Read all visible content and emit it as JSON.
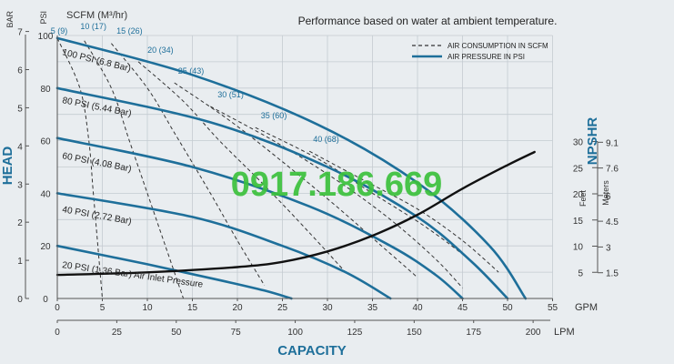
{
  "chart_data": {
    "type": "line",
    "title": "Performance based on water at ambient temperature.",
    "xlabel": "CAPACITY",
    "ylabel": "HEAD",
    "npshr_label": "NPSHR",
    "x_gpm": {
      "unit": "GPM",
      "range": [
        0,
        55
      ],
      "ticks": [
        0,
        5,
        10,
        15,
        20,
        25,
        30,
        35,
        40,
        45,
        50,
        55
      ]
    },
    "x_lpm": {
      "unit": "LPM",
      "range": [
        0,
        208
      ],
      "ticks": [
        0,
        25,
        50,
        75,
        100,
        125,
        150,
        175,
        200
      ]
    },
    "y_psi": {
      "unit": "PSI",
      "range": [
        0,
        100
      ],
      "ticks": [
        0,
        20,
        40,
        60,
        80,
        100
      ]
    },
    "y_bar": {
      "unit": "BAR",
      "ticks": [
        0,
        1,
        2,
        3,
        4,
        5,
        6,
        7
      ]
    },
    "npshr_axis": {
      "feet_label": "Feet",
      "meters_label": "Meters",
      "feet_ticks": [
        5,
        10,
        15,
        20,
        25,
        30
      ],
      "meters_ticks": [
        1.5,
        3,
        4.5,
        6,
        7.6,
        9.1
      ]
    },
    "scfm_label": "SCFM (M³/hr)",
    "legend": {
      "placement": "top-right",
      "items": [
        {
          "label": "AIR CONSUMPTION IN SCFM",
          "style": "dashed",
          "color": "#333333"
        },
        {
          "label": "AIR PRESSURE IN PSI",
          "style": "solid",
          "color": "#1e6f9a"
        }
      ]
    },
    "watermark": "0917.186.669",
    "air_pressure_series": [
      {
        "name": "100 PSI (6.8 Bar)",
        "points": [
          [
            0,
            99
          ],
          [
            15,
            85
          ],
          [
            29,
            66
          ],
          [
            40,
            44
          ],
          [
            48,
            20
          ],
          [
            52,
            0
          ]
        ]
      },
      {
        "name": "80 PSI (5.44 Bar)",
        "points": [
          [
            0,
            80
          ],
          [
            17,
            67
          ],
          [
            30,
            50
          ],
          [
            40,
            31
          ],
          [
            46,
            14
          ],
          [
            50,
            0
          ]
        ]
      },
      {
        "name": "60 PSI (4.08 Bar)",
        "points": [
          [
            0,
            61
          ],
          [
            15,
            50
          ],
          [
            28,
            35
          ],
          [
            37,
            20
          ],
          [
            42,
            9
          ],
          [
            45,
            0
          ]
        ]
      },
      {
        "name": "40 PSI (2.72 Bar)",
        "points": [
          [
            0,
            40
          ],
          [
            15,
            31
          ],
          [
            25,
            20
          ],
          [
            32,
            10
          ],
          [
            37,
            0
          ]
        ]
      },
      {
        "name": "20 PSI (1.36 Bar) Air Inlet Pressure",
        "points": [
          [
            0,
            20
          ],
          [
            10,
            13
          ],
          [
            18,
            7
          ],
          [
            23,
            3
          ],
          [
            26,
            0
          ]
        ]
      }
    ],
    "air_consumption_series": [
      {
        "name": "5 (9)",
        "points": [
          [
            0,
            99
          ],
          [
            2.5,
            80
          ],
          [
            3.5,
            60
          ],
          [
            4,
            40
          ],
          [
            4.5,
            20
          ],
          [
            5,
            0
          ]
        ]
      },
      {
        "name": "10 (17)",
        "points": [
          [
            3,
            98
          ],
          [
            6,
            80
          ],
          [
            8,
            60
          ],
          [
            10,
            40
          ],
          [
            12,
            20
          ],
          [
            14,
            0
          ]
        ]
      },
      {
        "name": "15 (26)",
        "points": [
          [
            6,
            97
          ],
          [
            10,
            80
          ],
          [
            13,
            63
          ],
          [
            17,
            40
          ],
          [
            20,
            22
          ],
          [
            23,
            5
          ]
        ]
      },
      {
        "name": "20 (34)",
        "points": [
          [
            9,
            90
          ],
          [
            14,
            75
          ],
          [
            18,
            60
          ],
          [
            23,
            43
          ],
          [
            28,
            25
          ],
          [
            32,
            10
          ]
        ]
      },
      {
        "name": "25 (43)",
        "points": [
          [
            13,
            82
          ],
          [
            19,
            68
          ],
          [
            25,
            52
          ],
          [
            31,
            35
          ],
          [
            36,
            20
          ],
          [
            40,
            8
          ]
        ]
      },
      {
        "name": "30 (51)",
        "points": [
          [
            17,
            73
          ],
          [
            24,
            60
          ],
          [
            31,
            45
          ],
          [
            37,
            30
          ],
          [
            42,
            15
          ],
          [
            45,
            4
          ]
        ]
      },
      {
        "name": "35 (60)",
        "points": [
          [
            22,
            65
          ],
          [
            29,
            53
          ],
          [
            35,
            40
          ],
          [
            41,
            27
          ],
          [
            46,
            14
          ],
          [
            49,
            4
          ]
        ]
      },
      {
        "name": "40 (68)",
        "points": [
          [
            28,
            56
          ],
          [
            34,
            45
          ],
          [
            40,
            34
          ],
          [
            45,
            22
          ],
          [
            49,
            10
          ]
        ]
      }
    ],
    "npshr_curve": {
      "name": "NPSHR",
      "points_gpm_feet": [
        [
          0,
          4.5
        ],
        [
          10,
          5
        ],
        [
          20,
          6
        ],
        [
          25,
          7
        ],
        [
          30,
          9
        ],
        [
          35,
          12
        ],
        [
          40,
          16
        ],
        [
          45,
          21
        ],
        [
          50,
          25.5
        ],
        [
          53,
          28
        ]
      ]
    }
  }
}
